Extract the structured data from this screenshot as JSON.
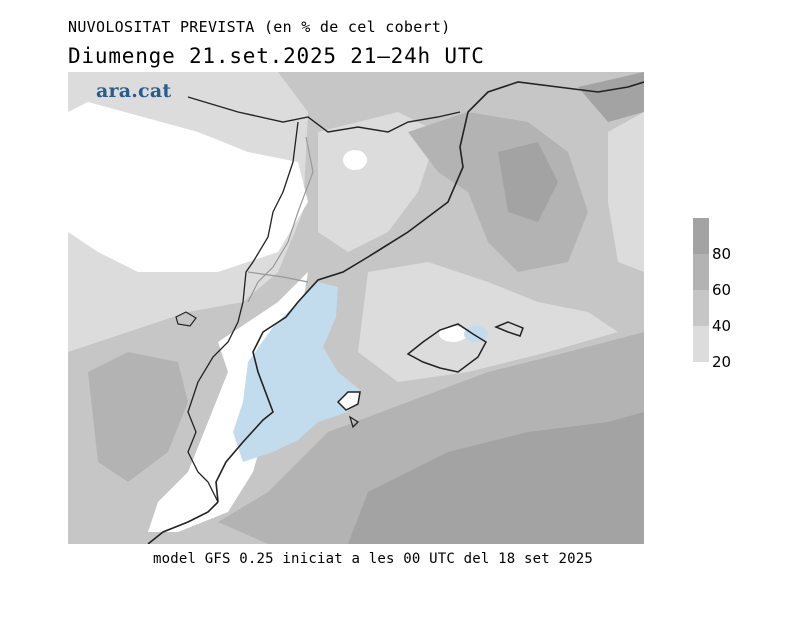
{
  "header": {
    "title": "NUVOLOSITAT PREVISTA (en % de cel cobert)",
    "subtitle": "Diumenge  21.set.2025 21–24h UTC"
  },
  "logo": {
    "text": "ara.cat",
    "color": "#2a5b8f"
  },
  "legend": {
    "labels": [
      "80",
      "60",
      "40",
      "20"
    ],
    "colors": {
      "c80_100": "#a3a3a3",
      "c60_80": "#b3b3b3",
      "c40_60": "#c6c6c6",
      "c20_40": "#dcdcdc",
      "water_low": "#c2dcee"
    }
  },
  "footer": {
    "text": "model GFS 0.25 iniciat a les 00 UTC del 18 set 2025"
  }
}
